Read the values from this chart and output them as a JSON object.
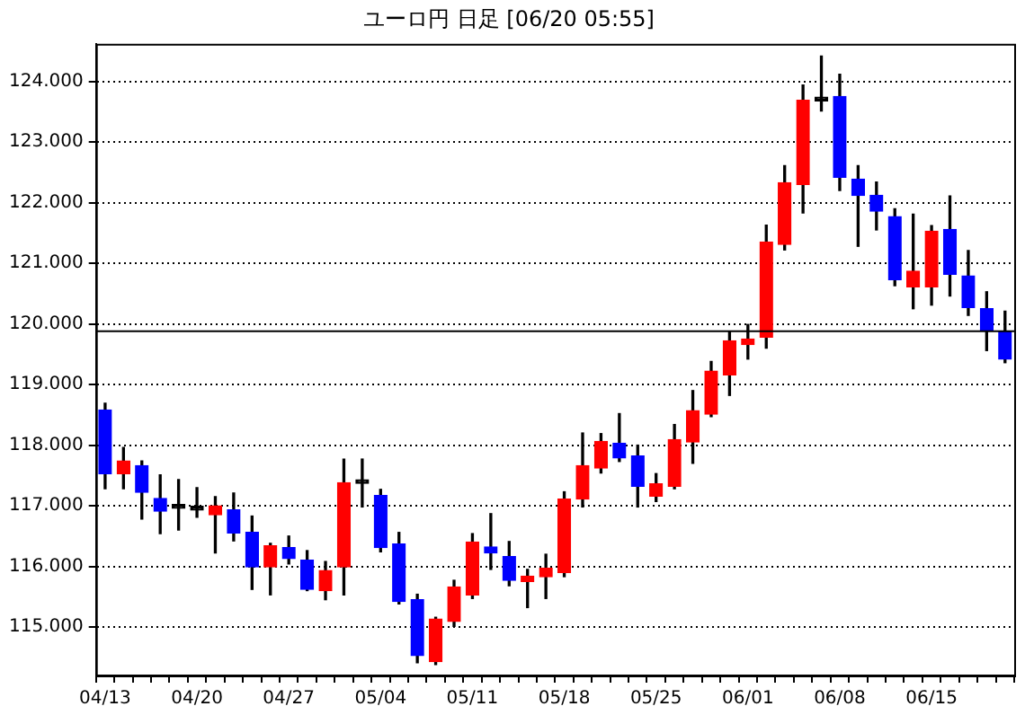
{
  "chart_data": {
    "type": "candlestick",
    "title": "ユーロ円 日足 [06/20 05:55]",
    "categories": [
      "04/13",
      null,
      null,
      null,
      null,
      "04/20",
      null,
      null,
      null,
      null,
      "04/27",
      null,
      null,
      null,
      null,
      "05/04",
      null,
      null,
      null,
      null,
      "05/11",
      null,
      null,
      null,
      null,
      "05/18",
      null,
      null,
      null,
      null,
      "05/25",
      null,
      null,
      null,
      null,
      "06/01",
      null,
      null,
      null,
      null,
      "06/08",
      null,
      null,
      null,
      null,
      "06/15",
      null,
      null,
      null,
      null
    ],
    "ohlc": [
      [
        118.58,
        118.69,
        117.28,
        117.53
      ],
      [
        117.53,
        117.96,
        117.28,
        117.74
      ],
      [
        117.66,
        117.74,
        116.78,
        117.22
      ],
      [
        117.12,
        117.51,
        116.54,
        116.91
      ],
      [
        116.96,
        117.43,
        116.6,
        116.96
      ],
      [
        116.93,
        117.3,
        116.81,
        116.93
      ],
      [
        116.85,
        117.15,
        116.22,
        117.0
      ],
      [
        116.93,
        117.21,
        116.42,
        116.55
      ],
      [
        116.56,
        116.83,
        115.62,
        115.99
      ],
      [
        115.99,
        116.38,
        115.53,
        116.34
      ],
      [
        116.31,
        116.5,
        116.04,
        116.13
      ],
      [
        116.1,
        116.26,
        115.6,
        115.62
      ],
      [
        115.6,
        116.08,
        115.45,
        115.93
      ],
      [
        115.99,
        117.77,
        115.53,
        117.38
      ],
      [
        117.37,
        117.77,
        116.98,
        117.37
      ],
      [
        117.17,
        117.27,
        116.24,
        116.31
      ],
      [
        116.37,
        116.56,
        115.38,
        115.42
      ],
      [
        115.45,
        115.54,
        114.41,
        114.53
      ],
      [
        114.43,
        115.16,
        114.38,
        115.13
      ],
      [
        115.09,
        115.77,
        115.01,
        115.66
      ],
      [
        115.53,
        116.54,
        115.47,
        116.4
      ],
      [
        116.32,
        116.87,
        115.95,
        116.22
      ],
      [
        116.16,
        116.41,
        115.68,
        115.77
      ],
      [
        115.75,
        115.95,
        115.32,
        115.84
      ],
      [
        115.83,
        116.2,
        115.47,
        115.97
      ],
      [
        115.9,
        117.23,
        115.83,
        117.11
      ],
      [
        117.11,
        118.2,
        116.98,
        117.66
      ],
      [
        117.62,
        118.19,
        117.54,
        118.06
      ],
      [
        118.03,
        118.52,
        117.73,
        117.79
      ],
      [
        117.82,
        118.0,
        116.98,
        117.32
      ],
      [
        117.16,
        117.53,
        117.07,
        117.36
      ],
      [
        117.32,
        118.34,
        117.28,
        118.09
      ],
      [
        118.05,
        118.9,
        117.7,
        118.57
      ],
      [
        118.51,
        119.38,
        118.47,
        119.22
      ],
      [
        119.16,
        119.87,
        118.82,
        119.72
      ],
      [
        119.66,
        119.99,
        119.42,
        119.75
      ],
      [
        119.78,
        121.63,
        119.6,
        121.35
      ],
      [
        121.31,
        122.61,
        121.22,
        122.33
      ],
      [
        122.3,
        123.94,
        121.83,
        123.69
      ],
      [
        123.68,
        124.42,
        123.51,
        123.68
      ],
      [
        123.75,
        124.12,
        122.2,
        122.42
      ],
      [
        122.39,
        122.61,
        121.28,
        122.12
      ],
      [
        122.12,
        122.34,
        121.55,
        121.86
      ],
      [
        121.77,
        121.9,
        120.63,
        120.73
      ],
      [
        120.61,
        121.81,
        120.25,
        120.87
      ],
      [
        120.61,
        121.62,
        120.31,
        121.53
      ],
      [
        121.56,
        122.11,
        120.46,
        120.82
      ],
      [
        120.79,
        121.21,
        120.14,
        120.27
      ],
      [
        120.25,
        120.53,
        119.56,
        119.88
      ],
      [
        119.87,
        120.21,
        119.36,
        119.42
      ]
    ],
    "colors": [
      "#0000ff",
      "#ff0000",
      "#0000ff",
      "#0000ff",
      "#000000",
      "#000000",
      "#ff0000",
      "#0000ff",
      "#0000ff",
      "#ff0000",
      "#0000ff",
      "#0000ff",
      "#ff0000",
      "#ff0000",
      "#000000",
      "#0000ff",
      "#0000ff",
      "#0000ff",
      "#ff0000",
      "#ff0000",
      "#ff0000",
      "#0000ff",
      "#0000ff",
      "#ff0000",
      "#ff0000",
      "#ff0000",
      "#ff0000",
      "#ff0000",
      "#0000ff",
      "#0000ff",
      "#ff0000",
      "#ff0000",
      "#ff0000",
      "#ff0000",
      "#ff0000",
      "#ff0000",
      "#ff0000",
      "#ff0000",
      "#ff0000",
      "#000000",
      "#0000ff",
      "#0000ff",
      "#0000ff",
      "#0000ff",
      "#ff0000",
      "#ff0000",
      "#0000ff",
      "#0000ff",
      "#0000ff",
      "#0000ff"
    ],
    "ylim": [
      114.2,
      124.62
    ],
    "yticks": [
      {
        "value": 115,
        "label": "115.000"
      },
      {
        "value": 116,
        "label": "116.000"
      },
      {
        "value": 117,
        "label": "117.000"
      },
      {
        "value": 118,
        "label": "118.000"
      },
      {
        "value": 119,
        "label": "119.000"
      },
      {
        "value": 120,
        "label": "120.000"
      },
      {
        "value": 121,
        "label": "121.000"
      },
      {
        "value": 122,
        "label": "122.000"
      },
      {
        "value": 123,
        "label": "123.000"
      },
      {
        "value": 124,
        "label": "124.000"
      }
    ],
    "grid": "y",
    "ref_lines": [
      {
        "axis": "y",
        "value": 119.88,
        "color": "#000000"
      }
    ]
  }
}
